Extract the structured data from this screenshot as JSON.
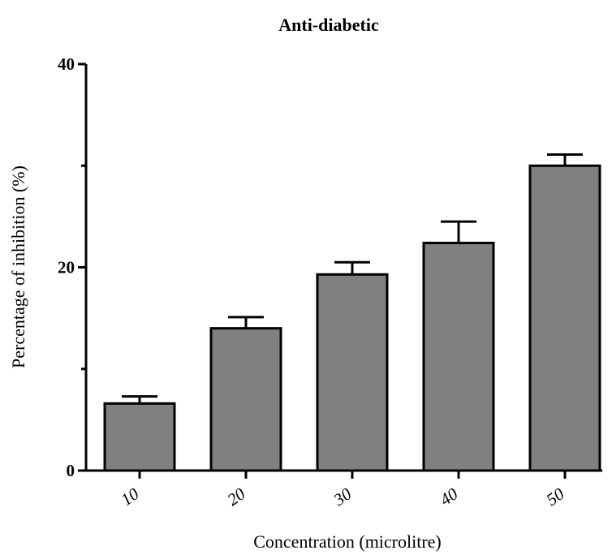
{
  "colors": {
    "bar_fill": "#808080",
    "bar_stroke": "#000000",
    "axis": "#000000"
  },
  "chart_data": {
    "type": "bar",
    "title": "Anti-diabetic",
    "xlabel": "Concentration (microlitre)",
    "ylabel": "Percentage of inhibition (%)",
    "categories": [
      "10",
      "20",
      "30",
      "40",
      "50"
    ],
    "values": [
      6.6,
      14.0,
      19.3,
      22.4,
      30.0
    ],
    "error_upper": [
      0.7,
      1.1,
      1.2,
      2.1,
      1.1
    ],
    "ylim": [
      0,
      40
    ],
    "yticks": [
      0,
      20,
      40
    ],
    "yticks_labeled": [
      "0",
      "20",
      "40"
    ],
    "grid": false,
    "legend": "none"
  }
}
